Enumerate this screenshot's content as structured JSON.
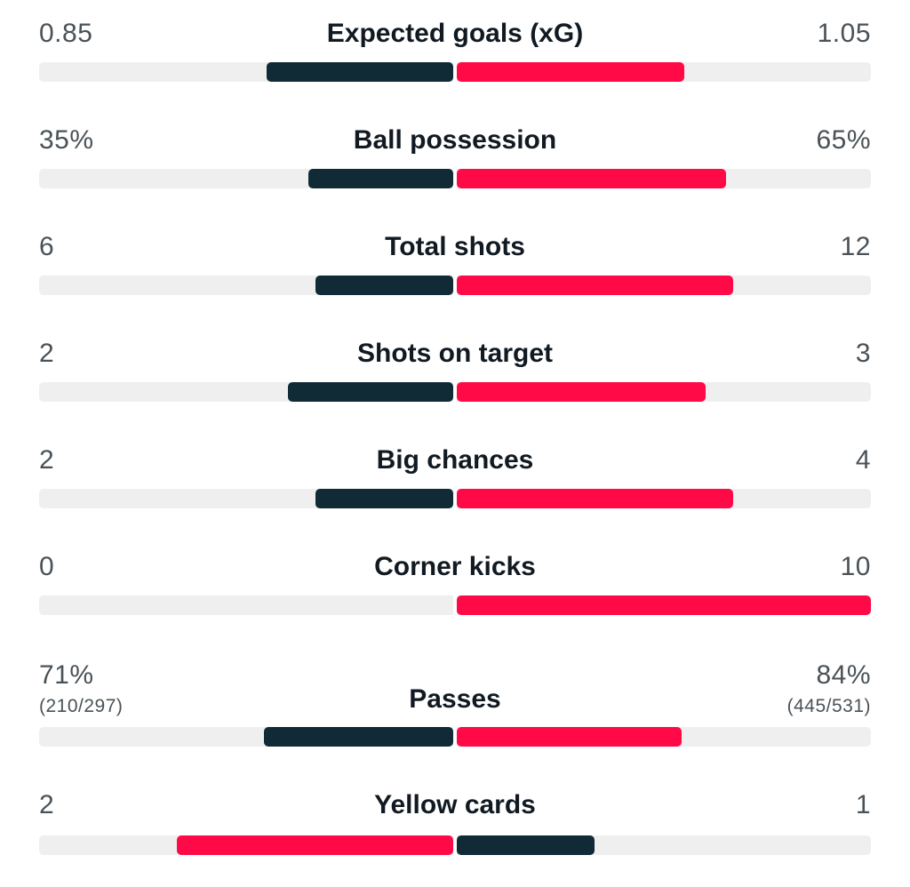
{
  "colors": {
    "dark": "#102a36",
    "red": "#ff0a47",
    "track": "#efefef"
  },
  "stats": [
    {
      "label": "Expected goals (xG)",
      "home": "0.85",
      "away": "1.05",
      "home_fill": 0.45,
      "away_fill": 0.55,
      "home_winner": false
    },
    {
      "label": "Ball possession",
      "home": "35%",
      "away": "65%",
      "home_fill": 0.35,
      "away_fill": 0.65,
      "home_winner": false
    },
    {
      "label": "Total shots",
      "home": "6",
      "away": "12",
      "home_fill": 0.333,
      "away_fill": 0.667,
      "home_winner": false
    },
    {
      "label": "Shots on target",
      "home": "2",
      "away": "3",
      "home_fill": 0.4,
      "away_fill": 0.6,
      "home_winner": false
    },
    {
      "label": "Big chances",
      "home": "2",
      "away": "4",
      "home_fill": 0.333,
      "away_fill": 0.667,
      "home_winner": false
    },
    {
      "label": "Corner kicks",
      "home": "0",
      "away": "10",
      "home_fill": 0.0,
      "away_fill": 1.0,
      "home_winner": false
    },
    {
      "label": "Passes",
      "home": "71%",
      "away": "84%",
      "home_sub": "(210/297)",
      "away_sub": "(445/531)",
      "home_fill": 0.458,
      "away_fill": 0.542,
      "home_winner": false
    },
    {
      "label": "Yellow cards",
      "home": "2",
      "away": "1",
      "home_fill": 0.667,
      "away_fill": 0.333,
      "home_winner": true
    }
  ]
}
